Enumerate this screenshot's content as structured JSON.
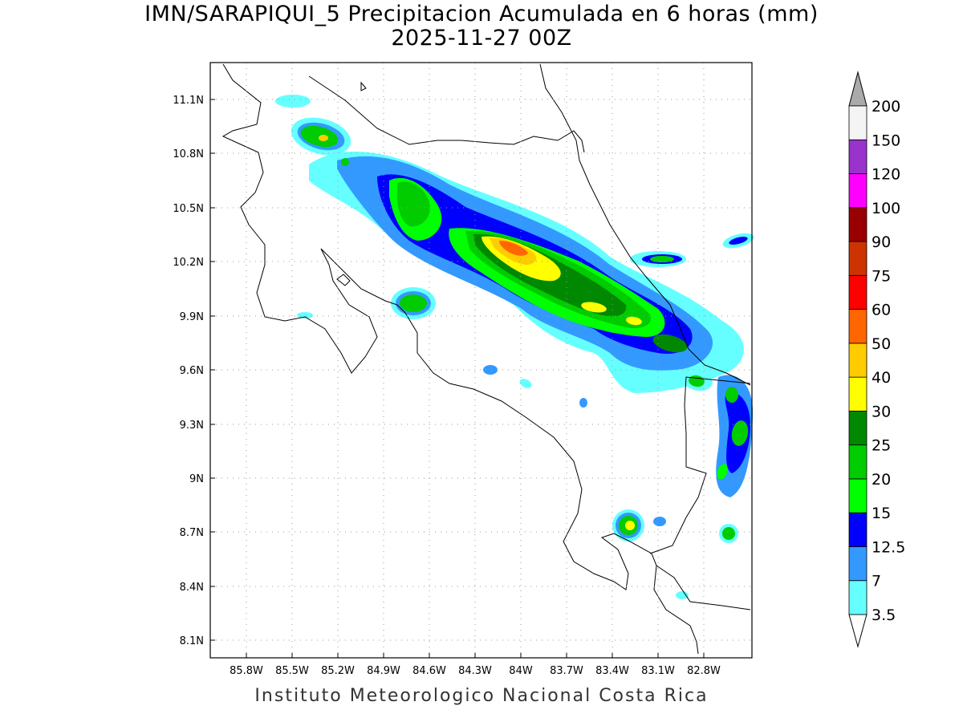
{
  "title": "IMN/SARAPIQUI_5 Precipitacion Acumulada en 6 horas (mm)",
  "subtitle": "2025-11-27 00Z",
  "footer": "Instituto Meteorologico Nacional Costa Rica",
  "map": {
    "lon_ticks": [
      "85.8W",
      "85.5W",
      "85.2W",
      "84.9W",
      "84.6W",
      "84.3W",
      "84W",
      "83.7W",
      "83.4W",
      "83.1W",
      "82.8W"
    ],
    "lat_ticks": [
      "11.1N",
      "10.8N",
      "10.5N",
      "10.2N",
      "9.9N",
      "9.6N",
      "9.3N",
      "9N",
      "8.7N",
      "8.4N",
      "8.1N"
    ],
    "grid": true,
    "units": "mm"
  },
  "legend": {
    "levels": [
      "3.5",
      "7",
      "12.5",
      "15",
      "20",
      "25",
      "30",
      "40",
      "50",
      "60",
      "75",
      "90",
      "100",
      "120",
      "150",
      "200"
    ],
    "colors": {
      "below": "#ffffff",
      "3.5": "#66ffff",
      "7": "#3399ff",
      "12.5": "#0000ff",
      "15": "#00ff00",
      "20": "#00cc00",
      "25": "#008800",
      "30": "#ffff00",
      "40": "#ffcc00",
      "50": "#ff6600",
      "60": "#ff0000",
      "75": "#cc3300",
      "90": "#990000",
      "100": "#ff00ff",
      "120": "#9933cc",
      "150": "#f4f4f4",
      "above": "#aaaaaa"
    }
  }
}
